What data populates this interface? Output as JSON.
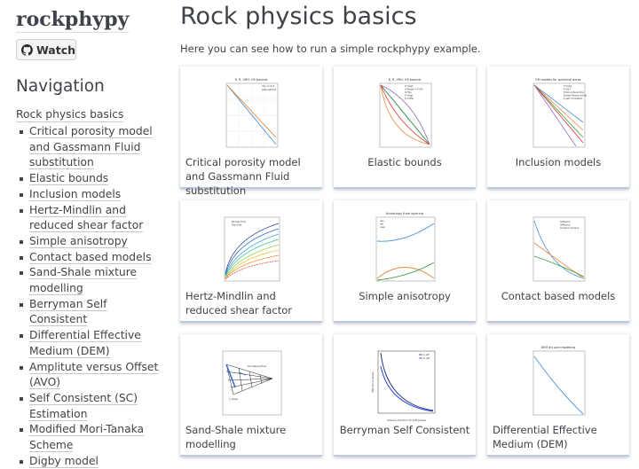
{
  "sidebar": {
    "logo": "rockphypy",
    "github_button": "Watch",
    "nav_heading": "Navigation",
    "nav_top": "Rock physics basics",
    "items": [
      "Critical porosity model and Gassmann Fluid substitution",
      "Elastic bounds",
      "Inclusion models",
      "Hertz-Mindlin and reduced shear factor",
      "Simple anisotropy",
      "Contact based models",
      "Sand-Shale mixture modelling",
      "Berryman Self Consistent",
      "Differential Effective Medium (DEM)",
      "Amplitute versus Offset (AVO)",
      "Self Consistent (SC) Estimation",
      "Modified Mori-Tanaka Scheme",
      "Digby model"
    ]
  },
  "main": {
    "title": "Rock physics basics",
    "intro": "Here you can see how to run a simple rockphypy example.",
    "cards": [
      {
        "caption": "Critical porosity model and Gassmann Fluid substitution",
        "plot_title": "K, R, VRH, HS bounds",
        "legend": [
          "dry rock K",
          "saturated K"
        ]
      },
      {
        "caption": "Elastic bounds",
        "plot_title": "K, R, VRH, HS bounds",
        "legend": [
          "K Voigt",
          "K Reuss = K HS-",
          "K HS+",
          "K Voigt",
          "K Coffer"
        ]
      },
      {
        "caption": "Inclusion models",
        "plot_title": "EM models for spherical pores",
        "legend": [
          "K Voigt",
          "K HS+",
          "K Non-interacting",
          "Kuster-Toksoz model",
          "K self consistent"
        ]
      },
      {
        "caption": "Hertz-Mindlin and reduced shear factor",
        "legend": [
          "No Slip limit",
          "Slip limit"
        ]
      },
      {
        "caption": "Simple anisotropy",
        "plot_title": "Anisotropy from layering",
        "legend": [
          "eps",
          "del",
          "vsen"
        ]
      },
      {
        "caption": "Contact based models",
        "legend": [
          "Softsand",
          "Stiffsand",
          "Contact cement"
        ]
      },
      {
        "caption": "Sand-Shale mixture modelling",
        "annotations": [
          "Decreasing fluid",
          "V_shale"
        ]
      },
      {
        "caption": "Berryman Self Consistent",
        "legend": [
          "K_eff",
          "G_eff"
        ],
        "xlabel": "Volume fraction of soft phase",
        "ylabel": "Effective modulus"
      },
      {
        "caption": "Differential Effective Medium (DEM)",
        "plot_title": "DEM dry pore modelling"
      }
    ]
  },
  "colors": {
    "accent_border": "#b8cbe0",
    "link_underline": "#c8c8c8",
    "text": "#3e4349"
  },
  "icons": {
    "github": "github-icon"
  }
}
